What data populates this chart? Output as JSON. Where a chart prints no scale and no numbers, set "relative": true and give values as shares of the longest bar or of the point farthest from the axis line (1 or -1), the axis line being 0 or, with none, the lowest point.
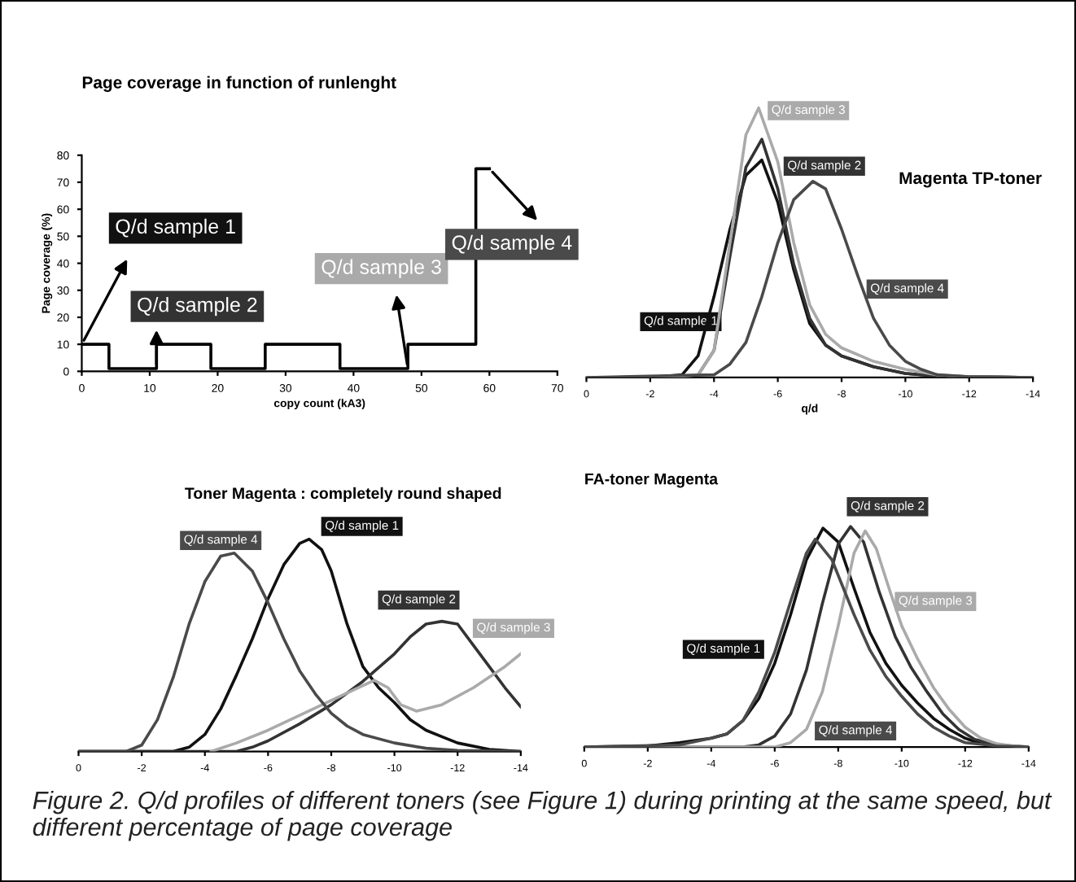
{
  "chart_data": [
    {
      "type": "line",
      "title": "Page coverage in function of runlenght",
      "xlabel": "copy count (kA3)",
      "ylabel": "Page coverage (%)",
      "xlim": [
        0,
        70
      ],
      "xticks": [
        0,
        10,
        20,
        30,
        40,
        50,
        60,
        70
      ],
      "ylim": [
        0,
        80
      ],
      "yticks": [
        0,
        10,
        20,
        30,
        40,
        50,
        60,
        70,
        80
      ],
      "grid": false,
      "legend": false,
      "marker": "none",
      "line_style": "solid",
      "series": [
        {
          "color": "#000000",
          "x": [
            0,
            4,
            4,
            11,
            11,
            19,
            19,
            27,
            27,
            38,
            38,
            48,
            48,
            58,
            58,
            60
          ],
          "values": [
            10,
            10,
            1,
            1,
            10,
            10,
            1,
            1,
            10,
            10,
            1,
            1,
            10,
            10,
            75,
            75
          ]
        }
      ],
      "annotations": [
        {
          "text": "Q/d sample 1",
          "x": 0,
          "y": 10
        },
        {
          "text": "Q/d sample 2",
          "x": 11,
          "y": 1
        },
        {
          "text": "Q/d sample 3",
          "x": 48,
          "y": 1
        },
        {
          "text": "Q/d sample 4",
          "x": 60,
          "y": 75
        }
      ]
    },
    {
      "type": "line",
      "title": "Magenta TP-toner",
      "xlabel": "q/d",
      "relative": true,
      "xlim": [
        0,
        -14
      ],
      "xticks": [
        0,
        -2,
        -4,
        -6,
        -8,
        -10,
        -12,
        -14
      ],
      "grid": false,
      "legend": false,
      "marker": "none",
      "line_style": "solid",
      "series": [
        {
          "name": "Q/d sample 1",
          "color": "#111111",
          "x": [
            0,
            -2,
            -3,
            -3.5,
            -4,
            -4.5,
            -5,
            -5.5,
            -6,
            -6.5,
            -7,
            -7.5,
            -8,
            -9,
            -10,
            -11,
            -14
          ],
          "values": [
            0,
            0,
            0.01,
            0.08,
            0.3,
            0.55,
            0.75,
            0.807,
            0.65,
            0.4,
            0.2,
            0.12,
            0.08,
            0.04,
            0.015,
            0.005,
            0
          ]
        },
        {
          "name": "Q/d sample 2",
          "color": "#333333",
          "x": [
            0,
            -3,
            -3.5,
            -4,
            -4.5,
            -5,
            -5.5,
            -6,
            -6.5,
            -7,
            -7.5,
            -8,
            -9,
            -10,
            -11,
            -14
          ],
          "values": [
            0,
            0,
            0.01,
            0.1,
            0.45,
            0.78,
            0.884,
            0.7,
            0.42,
            0.22,
            0.12,
            0.08,
            0.04,
            0.015,
            0.005,
            0
          ]
        },
        {
          "name": "Q/d sample 3",
          "color": "#aaaaaa",
          "x": [
            0,
            -2.5,
            -3.5,
            -4,
            -4.5,
            -5,
            -5.4,
            -6,
            -6.5,
            -7,
            -7.5,
            -8,
            -9,
            -10,
            -11,
            -12,
            -14
          ],
          "values": [
            0,
            0,
            0.01,
            0.1,
            0.5,
            0.9,
            1,
            0.8,
            0.5,
            0.27,
            0.16,
            0.11,
            0.06,
            0.03,
            0.01,
            0.003,
            0
          ]
        },
        {
          "name": "Q/d sample 4",
          "color": "#4a4a4a",
          "x": [
            0,
            -4,
            -4.5,
            -5,
            -5.5,
            -6,
            -6.5,
            -7.1,
            -7.5,
            -8,
            -8.5,
            -9,
            -9.5,
            -10,
            -10.5,
            -11,
            -12,
            -14
          ],
          "values": [
            0,
            0.01,
            0.05,
            0.13,
            0.3,
            0.5,
            0.66,
            0.728,
            0.7,
            0.55,
            0.38,
            0.22,
            0.12,
            0.06,
            0.03,
            0.01,
            0.003,
            0
          ]
        }
      ]
    },
    {
      "type": "line",
      "title": "Toner Magenta : completely round shaped",
      "relative": true,
      "xlim": [
        0,
        -14
      ],
      "xticks": [
        0,
        -2,
        -4,
        -6,
        -8,
        -10,
        -12,
        -14
      ],
      "grid": false,
      "legend": false,
      "marker": "none",
      "line_style": "solid",
      "series": [
        {
          "name": "Q/d sample 1",
          "color": "#111111",
          "x": [
            0,
            -3,
            -3.5,
            -4,
            -4.5,
            -5,
            -5.5,
            -6,
            -6.5,
            -7,
            -7.3,
            -7.7,
            -8,
            -8.5,
            -9,
            -9.5,
            -10,
            -10.5,
            -11,
            -11.5,
            -12,
            -13,
            -14
          ],
          "values": [
            0,
            0,
            0.02,
            0.08,
            0.2,
            0.36,
            0.53,
            0.72,
            0.88,
            0.98,
            1,
            0.95,
            0.85,
            0.6,
            0.4,
            0.3,
            0.23,
            0.15,
            0.1,
            0.07,
            0.04,
            0.01,
            0
          ]
        },
        {
          "name": "Q/d sample 2",
          "color": "#333333",
          "x": [
            0,
            -5,
            -5.5,
            -6,
            -7,
            -8,
            -9,
            -10,
            -10.5,
            -11,
            -11.5,
            -12,
            -12.5,
            -13,
            -13.5,
            -14
          ],
          "values": [
            0,
            0,
            0.02,
            0.05,
            0.13,
            0.22,
            0.33,
            0.46,
            0.54,
            0.6,
            0.613,
            0.6,
            0.5,
            0.4,
            0.3,
            0.21
          ]
        },
        {
          "name": "Q/d sample 3",
          "color": "#aaaaaa",
          "x": [
            -4.2,
            -5,
            -6,
            -7,
            -8,
            -9,
            -9.36,
            -9.8,
            -10.2,
            -10.7,
            -11.5,
            -12.5,
            -13.5,
            -14
          ],
          "values": [
            0,
            0.04,
            0.1,
            0.17,
            0.24,
            0.31,
            0.335,
            0.3,
            0.22,
            0.19,
            0.22,
            0.3,
            0.4,
            0.46
          ]
        },
        {
          "name": "Q/d sample 4",
          "color": "#4a4a4a",
          "x": [
            0,
            -1.5,
            -2,
            -2.5,
            -3,
            -3.5,
            -4,
            -4.5,
            -4.93,
            -5.5,
            -6,
            -6.5,
            -7,
            -7.5,
            -8,
            -8.5,
            -9,
            -10,
            -11,
            -12,
            -14
          ],
          "values": [
            0,
            0,
            0.03,
            0.15,
            0.35,
            0.6,
            0.8,
            0.92,
            0.934,
            0.85,
            0.7,
            0.53,
            0.38,
            0.27,
            0.18,
            0.12,
            0.08,
            0.04,
            0.015,
            0.005,
            0
          ]
        }
      ]
    },
    {
      "type": "line",
      "title": "FA-toner Magenta",
      "relative": true,
      "xlim": [
        0,
        -14
      ],
      "xticks": [
        0,
        -2,
        -4,
        -6,
        -8,
        -10,
        -12,
        -14
      ],
      "grid": false,
      "legend": false,
      "marker": "none",
      "line_style": "solid",
      "series": [
        {
          "name": "Q/d sample 1",
          "color": "#111111",
          "x": [
            0,
            -2,
            -3,
            -4,
            -4.5,
            -5,
            -5.5,
            -6,
            -6.5,
            -7,
            -7.52,
            -8,
            -8.5,
            -9,
            -9.5,
            -10,
            -10.5,
            -11,
            -11.5,
            -12,
            -12.5,
            -13,
            -14
          ],
          "values": [
            0,
            0.005,
            0.02,
            0.04,
            0.06,
            0.12,
            0.22,
            0.38,
            0.6,
            0.85,
            0.993,
            0.93,
            0.72,
            0.52,
            0.38,
            0.28,
            0.2,
            0.13,
            0.08,
            0.04,
            0.015,
            0.005,
            0
          ]
        },
        {
          "name": "Q/d sample 2",
          "color": "#333333",
          "x": [
            0,
            -5,
            -5.5,
            -6,
            -6.5,
            -7,
            -7.5,
            -8,
            -8.39,
            -8.8,
            -9.3,
            -9.8,
            -10.3,
            -10.8,
            -11.3,
            -11.8,
            -12.3,
            -13,
            -14
          ],
          "values": [
            0,
            0,
            0.01,
            0.05,
            0.15,
            0.35,
            0.65,
            0.92,
            1,
            0.93,
            0.7,
            0.5,
            0.36,
            0.25,
            0.15,
            0.08,
            0.035,
            0.01,
            0
          ]
        },
        {
          "name": "Q/d sample 3",
          "color": "#aaaaaa",
          "x": [
            0,
            -6,
            -6.5,
            -7,
            -7.5,
            -8,
            -8.5,
            -8.85,
            -9.2,
            -9.6,
            -10,
            -10.5,
            -11,
            -11.5,
            -12,
            -12.5,
            -13,
            -13.5,
            -14
          ],
          "values": [
            0,
            0,
            0.02,
            0.08,
            0.25,
            0.55,
            0.88,
            0.98,
            0.9,
            0.72,
            0.55,
            0.4,
            0.27,
            0.17,
            0.09,
            0.04,
            0.015,
            0.005,
            0
          ]
        },
        {
          "name": "Q/d sample 4",
          "color": "#4a4a4a",
          "x": [
            0,
            -3,
            -4,
            -4.5,
            -5,
            -5.5,
            -6,
            -6.5,
            -7,
            -7.28,
            -7.8,
            -8.5,
            -9,
            -9.5,
            -10,
            -10.5,
            -11,
            -11.5,
            -12,
            -13,
            -14
          ],
          "values": [
            0,
            0.01,
            0.04,
            0.06,
            0.12,
            0.25,
            0.43,
            0.66,
            0.88,
            0.943,
            0.85,
            0.6,
            0.44,
            0.32,
            0.23,
            0.15,
            0.09,
            0.05,
            0.02,
            0.005,
            0
          ]
        }
      ],
      "annotations": [
        "Figure 2. Q/d profiles of different toners (see Figure 1) during printing at the same speed, but different percentage of page coverage"
      ]
    }
  ]
}
